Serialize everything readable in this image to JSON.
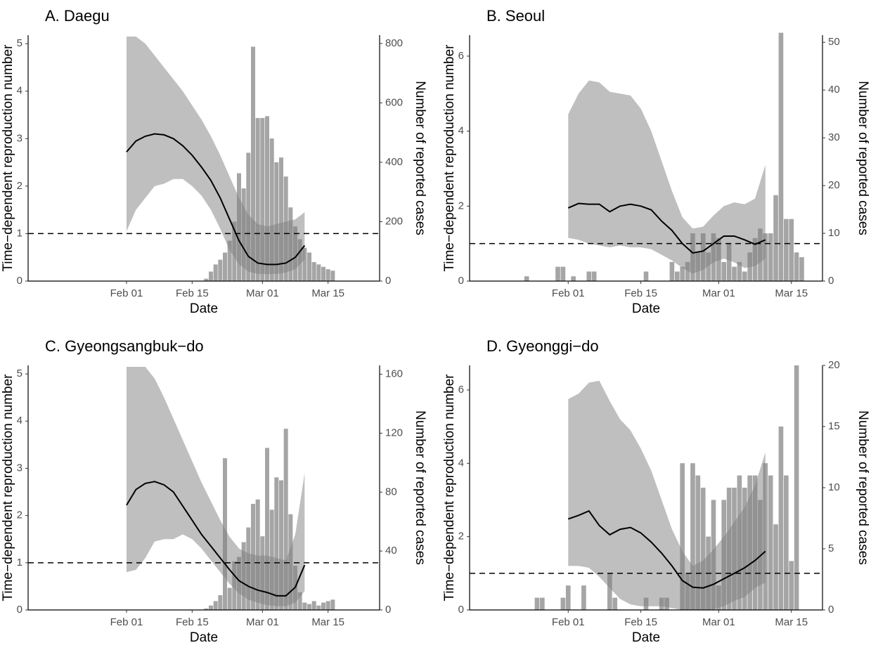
{
  "chart_data": [
    {
      "type": "combo",
      "title": "A. Daegu",
      "xlabel": "Date",
      "ylabel": "Time−dependent reproduction number",
      "y2label": "Number of reported cases",
      "xlim": [
        "Jan 11",
        "Mar 26"
      ],
      "xticks": [
        "Feb 01",
        "Feb 15",
        "Mar 01",
        "Mar 15"
      ],
      "ylim": [
        0,
        5.18
      ],
      "yticks": [
        0,
        1,
        2,
        3,
        4,
        5
      ],
      "y2lim": [
        0,
        828
      ],
      "y2ticks": [
        0,
        200,
        400,
        600,
        800
      ],
      "reference_line": 1,
      "bars": {
        "axis": "y2",
        "color": "#7f7f7f",
        "x": [
          "Feb 18",
          "Feb 19",
          "Feb 20",
          "Feb 21",
          "Feb 22",
          "Feb 23",
          "Feb 24",
          "Feb 25",
          "Feb 26",
          "Feb 27",
          "Feb 28",
          "Feb 29",
          "Mar 01",
          "Mar 02",
          "Mar 03",
          "Mar 04",
          "Mar 05",
          "Mar 06",
          "Mar 07",
          "Mar 08",
          "Mar 09",
          "Mar 10",
          "Mar 11",
          "Mar 12",
          "Mar 13",
          "Mar 14",
          "Mar 15",
          "Mar 16"
        ],
        "values": [
          8,
          32,
          56,
          72,
          96,
          136,
          200,
          363,
          312,
          432,
          789,
          549,
          549,
          555,
          480,
          400,
          416,
          352,
          248,
          184,
          141,
          112,
          96,
          64,
          56,
          48,
          40,
          35
        ]
      },
      "line": {
        "color": "#000000",
        "band_color": "#7f7f7f",
        "x": [
          "Feb 01",
          "Feb 03",
          "Feb 05",
          "Feb 07",
          "Feb 09",
          "Feb 11",
          "Feb 13",
          "Feb 15",
          "Feb 17",
          "Feb 19",
          "Feb 21",
          "Feb 23",
          "Feb 25",
          "Feb 27",
          "Feb 29",
          "Mar 02",
          "Mar 04",
          "Mar 06",
          "Mar 08",
          "Mar 10"
        ],
        "values": [
          2.72,
          2.95,
          3.05,
          3.1,
          3.08,
          3.0,
          2.85,
          2.65,
          2.4,
          2.12,
          1.75,
          1.3,
          0.85,
          0.52,
          0.38,
          0.35,
          0.35,
          0.38,
          0.5,
          0.75
        ],
        "lower": [
          1.05,
          1.5,
          1.75,
          2.0,
          2.05,
          2.15,
          2.15,
          2.0,
          1.8,
          1.5,
          1.1,
          0.65,
          0.35,
          0.2,
          0.15,
          0.15,
          0.15,
          0.18,
          0.25,
          0.45
        ],
        "upper": [
          5.15,
          5.15,
          5.0,
          4.75,
          4.5,
          4.25,
          4.0,
          3.7,
          3.4,
          3.05,
          2.65,
          2.2,
          1.75,
          1.4,
          1.2,
          1.15,
          1.2,
          1.25,
          1.3,
          1.45
        ]
      }
    },
    {
      "type": "combo",
      "title": "B. Seoul",
      "xlabel": "Date",
      "ylabel": "Time−dependent reproduction number",
      "y2label": "Number of reported cases",
      "xlim": [
        "Jan 13",
        "Mar 21"
      ],
      "xticks": [
        "Feb 01",
        "Feb 15",
        "Mar 01",
        "Mar 15"
      ],
      "ylim": [
        0,
        6.56
      ],
      "yticks": [
        0,
        2,
        4,
        6
      ],
      "y2lim": [
        0,
        51.5
      ],
      "y2ticks": [
        0,
        10,
        20,
        30,
        40,
        50
      ],
      "reference_line": 1,
      "bars": {
        "axis": "y2",
        "color": "#7f7f7f",
        "x": [
          "Jan 24",
          "Jan 30",
          "Jan 31",
          "Feb 02",
          "Feb 05",
          "Feb 06",
          "Feb 16",
          "Feb 21",
          "Feb 22",
          "Feb 23",
          "Feb 24",
          "Feb 25",
          "Feb 26",
          "Feb 27",
          "Feb 28",
          "Feb 29",
          "Mar 01",
          "Mar 02",
          "Mar 03",
          "Mar 04",
          "Mar 05",
          "Mar 06",
          "Mar 07",
          "Mar 08",
          "Mar 09",
          "Mar 10",
          "Mar 11",
          "Mar 12",
          "Mar 13",
          "Mar 14",
          "Mar 15",
          "Mar 16",
          "Mar 17"
        ],
        "values": [
          1,
          3,
          3,
          1,
          2,
          2,
          2,
          4,
          2,
          3,
          4,
          10,
          6,
          10,
          6,
          10,
          9,
          4,
          8,
          3,
          4,
          2,
          6,
          9,
          11,
          10,
          10,
          18,
          52,
          13,
          13,
          6,
          5
        ]
      },
      "line": {
        "color": "#000000",
        "band_color": "#7f7f7f",
        "x": [
          "Feb 01",
          "Feb 03",
          "Feb 05",
          "Feb 07",
          "Feb 09",
          "Feb 11",
          "Feb 13",
          "Feb 15",
          "Feb 17",
          "Feb 19",
          "Feb 21",
          "Feb 23",
          "Feb 25",
          "Feb 27",
          "Feb 29",
          "Mar 02",
          "Mar 04",
          "Mar 06",
          "Mar 08",
          "Mar 10"
        ],
        "values": [
          1.95,
          2.07,
          2.05,
          2.05,
          1.85,
          2.0,
          2.05,
          2.0,
          1.9,
          1.6,
          1.35,
          1.0,
          0.75,
          0.8,
          1.0,
          1.2,
          1.2,
          1.1,
          0.98,
          1.1
        ],
        "lower": [
          1.15,
          1.1,
          1.0,
          0.95,
          0.9,
          0.95,
          0.9,
          0.9,
          0.85,
          0.7,
          0.55,
          0.35,
          0.2,
          0.3,
          0.5,
          0.6,
          0.5,
          0.35,
          0.4,
          0.6
        ],
        "upper": [
          4.45,
          5.0,
          5.35,
          5.3,
          5.05,
          5.0,
          4.95,
          4.6,
          4.0,
          3.2,
          2.4,
          1.7,
          1.4,
          1.45,
          1.75,
          2.0,
          2.1,
          2.05,
          2.2,
          3.1
        ]
      }
    },
    {
      "type": "combo",
      "title": "C. Gyeongsangbuk−do",
      "xlabel": "Date",
      "ylabel": "Time−dependent reproduction number",
      "y2label": "Number of reported cases",
      "xlim": [
        "Jan 11",
        "Mar 26"
      ],
      "xticks": [
        "Feb 01",
        "Feb 15",
        "Mar 01",
        "Mar 15"
      ],
      "ylim": [
        0,
        5.18
      ],
      "yticks": [
        0,
        1,
        2,
        3,
        4,
        5
      ],
      "y2lim": [
        0,
        166
      ],
      "y2ticks": [
        0,
        40,
        80,
        120,
        160
      ],
      "reference_line": 1,
      "bars": {
        "axis": "y2",
        "color": "#7f7f7f",
        "x": [
          "Feb 18",
          "Feb 19",
          "Feb 20",
          "Feb 21",
          "Feb 22",
          "Feb 23",
          "Feb 24",
          "Feb 25",
          "Feb 26",
          "Feb 27",
          "Feb 28",
          "Feb 29",
          "Mar 01",
          "Mar 02",
          "Mar 03",
          "Mar 04",
          "Mar 05",
          "Mar 06",
          "Mar 07",
          "Mar 08",
          "Mar 09",
          "Mar 10",
          "Mar 11",
          "Mar 12",
          "Mar 13",
          "Mar 14",
          "Mar 15",
          "Mar 16"
        ],
        "values": [
          1,
          3,
          6,
          10,
          103,
          15,
          33,
          36,
          46,
          56,
          72,
          75,
          50,
          110,
          68,
          90,
          88,
          123,
          65,
          30,
          12,
          5,
          4,
          6,
          3,
          5,
          6,
          7
        ]
      },
      "line": {
        "color": "#000000",
        "band_color": "#7f7f7f",
        "x": [
          "Feb 01",
          "Feb 03",
          "Feb 05",
          "Feb 07",
          "Feb 09",
          "Feb 11",
          "Feb 13",
          "Feb 15",
          "Feb 17",
          "Feb 19",
          "Feb 21",
          "Feb 23",
          "Feb 25",
          "Feb 27",
          "Feb 29",
          "Mar 02",
          "Mar 04",
          "Mar 06",
          "Mar 08",
          "Mar 10"
        ],
        "values": [
          2.22,
          2.55,
          2.68,
          2.72,
          2.65,
          2.5,
          2.2,
          1.9,
          1.6,
          1.35,
          1.1,
          0.85,
          0.62,
          0.5,
          0.42,
          0.37,
          0.3,
          0.3,
          0.48,
          0.95
        ],
        "lower": [
          0.8,
          0.85,
          1.1,
          1.45,
          1.5,
          1.5,
          1.6,
          1.5,
          1.3,
          1.05,
          0.8,
          0.55,
          0.35,
          0.22,
          0.15,
          0.1,
          0.08,
          0.08,
          0.15,
          0.4
        ],
        "upper": [
          5.15,
          5.15,
          5.15,
          4.9,
          4.5,
          4.05,
          3.6,
          3.15,
          2.7,
          2.3,
          1.9,
          1.55,
          1.3,
          1.2,
          1.15,
          1.15,
          1.1,
          1.05,
          1.6,
          2.9
        ]
      }
    },
    {
      "type": "combo",
      "title": "D. Gyeonggi−do",
      "xlabel": "Date",
      "ylabel": "Time−dependent reproduction number",
      "y2label": "Number of reported cases",
      "xlim": [
        "Jan 13",
        "Mar 21"
      ],
      "xticks": [
        "Feb 01",
        "Feb 15",
        "Mar 01",
        "Mar 15"
      ],
      "ylim": [
        0,
        6.67
      ],
      "yticks": [
        0,
        2,
        4,
        6
      ],
      "y2lim": [
        0,
        20
      ],
      "y2ticks": [
        0,
        5,
        10,
        15,
        20
      ],
      "reference_line": 1,
      "bars": {
        "axis": "y2",
        "color": "#7f7f7f",
        "x": [
          "Jan 26",
          "Jan 27",
          "Jan 31",
          "Feb 01",
          "Feb 04",
          "Feb 09",
          "Feb 10",
          "Feb 16",
          "Feb 19",
          "Feb 20",
          "Feb 23",
          "Feb 24",
          "Feb 25",
          "Feb 26",
          "Feb 27",
          "Feb 28",
          "Feb 29",
          "Mar 01",
          "Mar 02",
          "Mar 03",
          "Mar 04",
          "Mar 05",
          "Mar 06",
          "Mar 07",
          "Mar 08",
          "Mar 09",
          "Mar 10",
          "Mar 11",
          "Mar 12",
          "Mar 13",
          "Mar 14",
          "Mar 15",
          "Mar 16"
        ],
        "values": [
          1,
          1,
          1,
          2,
          2,
          3,
          1,
          1,
          1,
          1,
          12,
          3,
          12,
          11,
          10,
          6,
          9,
          2,
          9,
          10,
          10,
          11,
          10,
          11,
          11,
          9,
          12,
          11,
          7,
          15,
          11,
          4,
          20
        ]
      },
      "line": {
        "color": "#000000",
        "band_color": "#7f7f7f",
        "x": [
          "Feb 01",
          "Feb 03",
          "Feb 05",
          "Feb 07",
          "Feb 09",
          "Feb 11",
          "Feb 13",
          "Feb 15",
          "Feb 17",
          "Feb 19",
          "Feb 21",
          "Feb 23",
          "Feb 25",
          "Feb 27",
          "Feb 29",
          "Mar 02",
          "Mar 04",
          "Mar 06",
          "Mar 08",
          "Mar 10"
        ],
        "values": [
          2.48,
          2.58,
          2.7,
          2.3,
          2.05,
          2.2,
          2.25,
          2.1,
          1.85,
          1.55,
          1.2,
          0.8,
          0.62,
          0.6,
          0.7,
          0.85,
          1.0,
          1.15,
          1.35,
          1.6
        ],
        "lower": [
          1.2,
          1.2,
          1.15,
          0.9,
          0.6,
          0.3,
          0.15,
          0.1,
          0.1,
          0.1,
          0.05,
          0.0,
          0.0,
          0.0,
          0.02,
          0.1,
          0.25,
          0.35,
          0.6,
          0.75
        ],
        "upper": [
          5.75,
          5.9,
          6.2,
          6.25,
          5.7,
          5.2,
          4.9,
          4.4,
          3.8,
          3.0,
          2.2,
          1.6,
          1.2,
          1.35,
          1.65,
          2.0,
          2.4,
          2.8,
          3.4,
          4.3
        ]
      }
    }
  ]
}
